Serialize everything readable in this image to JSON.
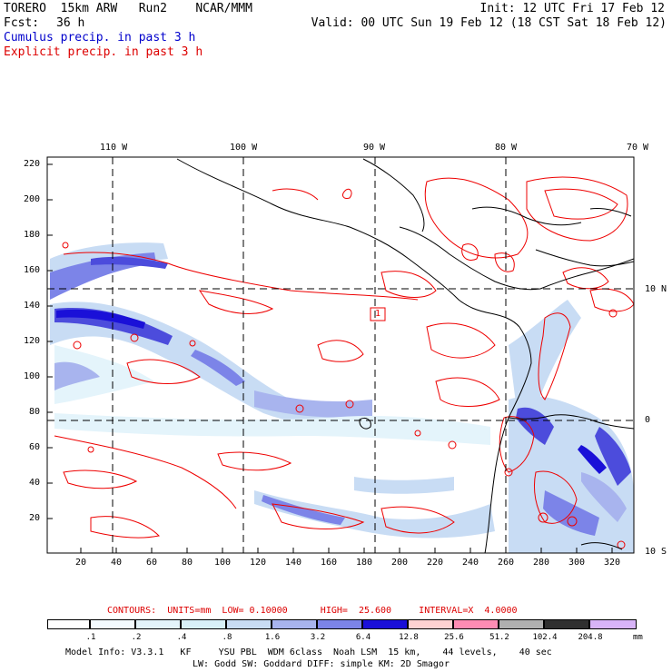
{
  "header": {
    "model": "TORERO  15km ARW   Run2    NCAR/MMM",
    "init": "Init: 12 UTC Fri 17 Feb 12",
    "fcst_label": "Fcst:",
    "fcst_value": "36 h",
    "valid": "Valid: 00 UTC Sun 19 Feb 12 (18 CST Sat 18 Feb 12)",
    "cumulus": "Cumulus precip. in past 3 h",
    "explicit": "Explicit precip. in past 3 h"
  },
  "top_axis": [
    "110 W",
    "100 W",
    "90 W",
    "80 W",
    "70 W"
  ],
  "right_axis": [
    "10 N",
    "0",
    "10 S"
  ],
  "left_axis": [
    "220",
    "200",
    "180",
    "160",
    "140",
    "120",
    "100",
    "80",
    "60",
    "40",
    "20"
  ],
  "bottom_axis": [
    "20",
    "40",
    "60",
    "80",
    "100",
    "120",
    "140",
    "160",
    "180",
    "200",
    "220",
    "240",
    "260",
    "280",
    "300",
    "320"
  ],
  "marker": "1",
  "contours_info": "CONTOURS:  UNITS=mm  LOW= 0.10000      HIGH=  25.600     INTERVAL=X  4.0000",
  "colorbar": {
    "labels": [
      ".1",
      ".2",
      ".4",
      ".8",
      "1.6",
      "3.2",
      "6.4",
      "12.8",
      "25.6",
      "51.2",
      "102.4",
      "204.8"
    ],
    "unit": "mm",
    "colors": [
      "#ffffff",
      "#f4fbff",
      "#e4f4fb",
      "#d8f0f8",
      "#c8dcf4",
      "#a8b4ee",
      "#7c84e8",
      "#4c4cdc",
      "#1a10d8",
      "#ffd2d2",
      "#ff8cb4",
      "#b0b0b0",
      "#303030",
      "#d8b4f8"
    ]
  },
  "footer": {
    "line1": "Model Info: V3.3.1   KF     YSU PBL  WDM 6class  Noah LSM  15 km,    44 levels,    40 sec",
    "line2": "LW: Godd SW: Goddard DIFF: simple KM: 2D Smagor"
  }
}
